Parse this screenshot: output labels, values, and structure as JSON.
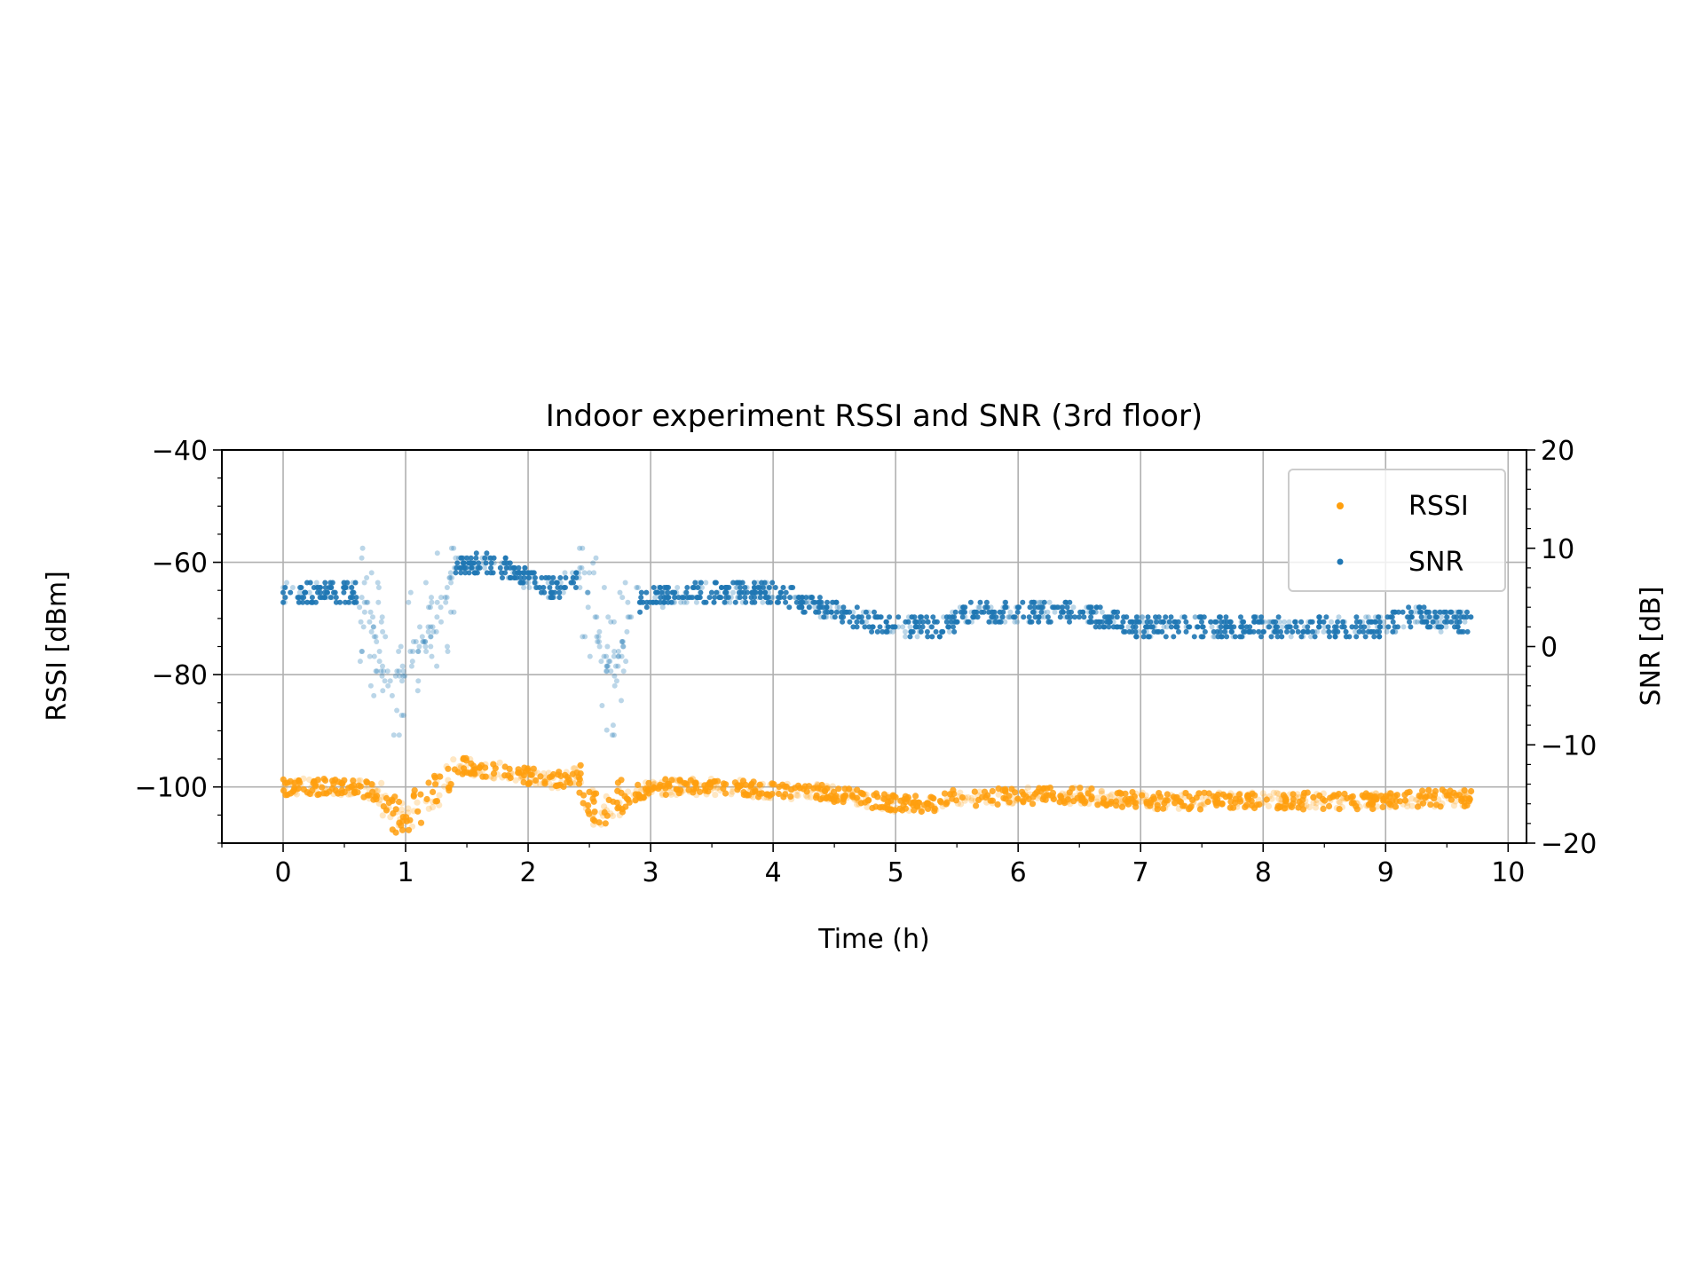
{
  "chart_data": {
    "type": "scatter",
    "title": "Indoor experiment RSSI and SNR (3rd floor)",
    "xlabel": "Time (h)",
    "ylabel": "RSSI [dBm]",
    "y2label": "SNR [dB]",
    "xlim": [
      -0.5,
      10.15
    ],
    "ylim": [
      -110,
      -40
    ],
    "y2lim": [
      -20,
      20
    ],
    "xticks": [
      "0",
      "1",
      "2",
      "3",
      "4",
      "5",
      "6",
      "7",
      "8",
      "9",
      "10"
    ],
    "yticks": [
      "−100",
      "−80",
      "−60",
      "−40"
    ],
    "y2ticks": [
      "−20",
      "−10",
      "0",
      "10",
      "20"
    ],
    "grid": true,
    "legend_position": "top-right",
    "series": [
      {
        "name": "RSSI",
        "axis": "left",
        "color": "#ff9f0e",
        "trend_x": [
          0,
          0.3,
          0.6,
          0.75,
          0.9,
          1.0,
          1.2,
          1.35,
          1.5,
          1.6,
          1.8,
          2.0,
          2.2,
          2.4,
          2.5,
          2.6,
          2.75,
          2.9,
          3.0,
          3.5,
          4.0,
          4.4,
          4.7,
          5.0,
          5.3,
          5.5,
          5.7,
          6.0,
          6.5,
          7.0,
          8.0,
          9.0,
          9.3,
          9.7
        ],
        "trend_y": [
          -100,
          -100,
          -100,
          -101,
          -105,
          -105,
          -102,
          -98,
          -96,
          -97,
          -97,
          -98,
          -99,
          -98,
          -103,
          -105,
          -102,
          -101,
          -100,
          -100,
          -100.5,
          -101,
          -102,
          -103,
          -103,
          -101.5,
          -102,
          -101.5,
          -101.5,
          -102.5,
          -102.5,
          -102.5,
          -102,
          -102
        ],
        "spread_dBm": 1.5
      },
      {
        "name": "SNR",
        "axis": "right",
        "color": "#1f77b4",
        "trend_x": [
          0,
          0.3,
          0.6,
          0.7,
          0.8,
          0.9,
          1.0,
          1.1,
          1.2,
          1.3,
          1.4,
          1.6,
          1.8,
          2.0,
          2.2,
          2.45,
          2.6,
          2.7,
          2.8,
          2.9,
          3.0,
          3.5,
          4.0,
          4.3,
          4.6,
          5.0,
          5.4,
          5.6,
          6.0,
          6.5,
          7.0,
          8.0,
          9.0,
          9.2,
          9.7
        ],
        "trend_y": [
          5.5,
          5.5,
          5.5,
          4,
          -2,
          -4,
          -2,
          0,
          1,
          4,
          8,
          8.5,
          8,
          7,
          6,
          7,
          0,
          -4,
          2,
          4.5,
          5,
          5.5,
          5.5,
          4.5,
          3,
          2,
          2,
          3.5,
          3.5,
          3.5,
          2,
          2,
          2,
          3,
          2.5
        ],
        "spread_dB": 1.5
      }
    ]
  }
}
